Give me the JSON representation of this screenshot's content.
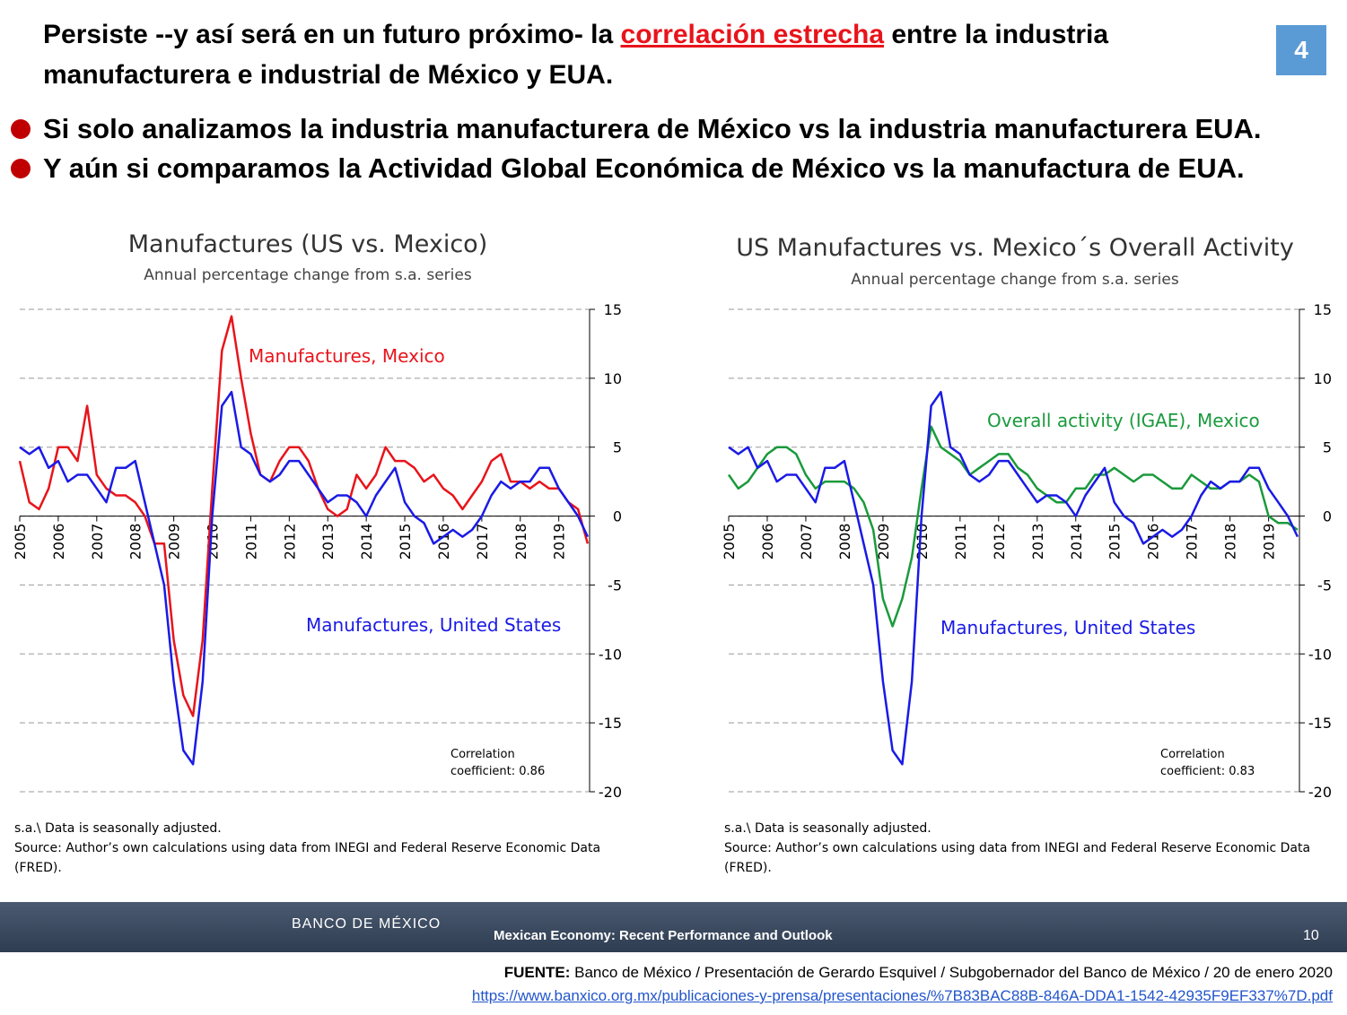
{
  "header": {
    "title_parts": [
      "Persiste --y así será en un futuro próximo- la ",
      "correlación estrecha",
      " entre la industria",
      "manufacturera e industrial de México y EUA."
    ],
    "page_number": "4"
  },
  "bullets": [
    "Si solo analizamos la industria manufacturera de México vs la industria manufacturera EUA.",
    "Y aún si comparamos la Actividad Global Económica de México vs la manufactura de EUA."
  ],
  "chart_data": [
    {
      "type": "line",
      "title": "Manufactures (US vs. Mexico)",
      "subtitle": "Annual percentage change from s.a. series",
      "x": [
        2005,
        2005.25,
        2005.5,
        2005.75,
        2006,
        2006.25,
        2006.5,
        2006.75,
        2007,
        2007.25,
        2007.5,
        2007.75,
        2008,
        2008.25,
        2008.5,
        2008.75,
        2009,
        2009.25,
        2009.5,
        2009.75,
        2010,
        2010.25,
        2010.5,
        2010.75,
        2011,
        2011.25,
        2011.5,
        2011.75,
        2012,
        2012.25,
        2012.5,
        2012.75,
        2013,
        2013.25,
        2013.5,
        2013.75,
        2014,
        2014.25,
        2014.5,
        2014.75,
        2015,
        2015.25,
        2015.5,
        2015.75,
        2016,
        2016.25,
        2016.5,
        2016.75,
        2017,
        2017.25,
        2017.5,
        2017.75,
        2018,
        2018.25,
        2018.5,
        2018.75,
        2019,
        2019.25,
        2019.5,
        2019.75
      ],
      "xlim": [
        2005,
        2019.8
      ],
      "xticks": [
        2005,
        2006,
        2007,
        2008,
        2009,
        2010,
        2011,
        2012,
        2013,
        2014,
        2015,
        2016,
        2017,
        2018,
        2019
      ],
      "ylim": [
        -20,
        15
      ],
      "yticks": [
        15,
        10,
        5,
        0,
        -5,
        -10,
        -15,
        -20
      ],
      "grid": true,
      "series": [
        {
          "name": "Manufactures, Mexico",
          "color": "#e8141b",
          "values": [
            4,
            1,
            0.5,
            2,
            5,
            5,
            4,
            8,
            3,
            2,
            1.5,
            1.5,
            1,
            0,
            -2,
            -2,
            -9,
            -13,
            -14.5,
            -9,
            2,
            12,
            14.5,
            10,
            6,
            3,
            2.5,
            4,
            5,
            5,
            4,
            2,
            0.5,
            0,
            0.5,
            3,
            2,
            3,
            5,
            4,
            4,
            3.5,
            2.5,
            3,
            2,
            1.5,
            0.5,
            1.5,
            2.5,
            4,
            4.5,
            2.5,
            2.5,
            2,
            2.5,
            2,
            2,
            1,
            0.5,
            -2
          ]
        },
        {
          "name": "Manufactures, United States",
          "color": "#1a1ae6",
          "values": [
            5,
            4.5,
            5,
            3.5,
            4,
            2.5,
            3,
            3,
            2,
            1,
            3.5,
            3.5,
            4,
            1,
            -2,
            -5,
            -12,
            -17,
            -18,
            -12,
            0,
            8,
            9,
            5,
            4.5,
            3,
            2.5,
            3,
            4,
            4,
            3,
            2,
            1,
            1.5,
            1.5,
            1,
            0,
            1.5,
            2.5,
            3.5,
            1,
            0,
            -0.5,
            -2,
            -1.5,
            -1,
            -1.5,
            -1,
            0,
            1.5,
            2.5,
            2,
            2.5,
            2.5,
            3.5,
            3.5,
            2,
            1,
            0,
            -1.5
          ]
        }
      ],
      "annotation": [
        "Correlation",
        "coefficient: 0.86"
      ],
      "notes": [
        "s.a.\\ Data is seasonally adjusted.",
        "Source: Author’s own calculations using data from INEGI and Federal Reserve Economic Data",
        "(FRED)."
      ]
    },
    {
      "type": "line",
      "title": "US Manufactures vs. Mexico´s Overall Activity",
      "subtitle": "Annual percentage change from s.a. series",
      "x": [
        2005,
        2005.25,
        2005.5,
        2005.75,
        2006,
        2006.25,
        2006.5,
        2006.75,
        2007,
        2007.25,
        2007.5,
        2007.75,
        2008,
        2008.25,
        2008.5,
        2008.75,
        2009,
        2009.25,
        2009.5,
        2009.75,
        2010,
        2010.25,
        2010.5,
        2010.75,
        2011,
        2011.25,
        2011.5,
        2011.75,
        2012,
        2012.25,
        2012.5,
        2012.75,
        2013,
        2013.25,
        2013.5,
        2013.75,
        2014,
        2014.25,
        2014.5,
        2014.75,
        2015,
        2015.25,
        2015.5,
        2015.75,
        2016,
        2016.25,
        2016.5,
        2016.75,
        2017,
        2017.25,
        2017.5,
        2017.75,
        2018,
        2018.25,
        2018.5,
        2018.75,
        2019,
        2019.25,
        2019.5,
        2019.75
      ],
      "xlim": [
        2005,
        2019.8
      ],
      "xticks": [
        2005,
        2006,
        2007,
        2008,
        2009,
        2010,
        2011,
        2012,
        2013,
        2014,
        2015,
        2016,
        2017,
        2018,
        2019
      ],
      "ylim": [
        -20,
        15
      ],
      "yticks": [
        15,
        10,
        5,
        0,
        -5,
        -10,
        -15,
        -20
      ],
      "grid": true,
      "series": [
        {
          "name": "Overall activity (IGAE), Mexico",
          "color": "#1a9a3c",
          "values": [
            3,
            2,
            2.5,
            3.5,
            4.5,
            5,
            5,
            4.5,
            3,
            2,
            2.5,
            2.5,
            2.5,
            2,
            1,
            -1,
            -6,
            -8,
            -6,
            -3,
            2,
            6.5,
            5,
            4.5,
            4,
            3,
            3.5,
            4,
            4.5,
            4.5,
            3.5,
            3,
            2,
            1.5,
            1,
            1,
            2,
            2,
            3,
            3,
            3.5,
            3,
            2.5,
            3,
            3,
            2.5,
            2,
            2,
            3,
            2.5,
            2,
            2,
            2.5,
            2.5,
            3,
            2.5,
            0,
            -0.5,
            -0.5,
            -1
          ]
        },
        {
          "name": "Manufactures, United States",
          "color": "#1a1ae6",
          "values": [
            5,
            4.5,
            5,
            3.5,
            4,
            2.5,
            3,
            3,
            2,
            1,
            3.5,
            3.5,
            4,
            1,
            -2,
            -5,
            -12,
            -17,
            -18,
            -12,
            0,
            8,
            9,
            5,
            4.5,
            3,
            2.5,
            3,
            4,
            4,
            3,
            2,
            1,
            1.5,
            1.5,
            1,
            0,
            1.5,
            2.5,
            3.5,
            1,
            0,
            -0.5,
            -2,
            -1.5,
            -1,
            -1.5,
            -1,
            0,
            1.5,
            2.5,
            2,
            2.5,
            2.5,
            3.5,
            3.5,
            2,
            1,
            0,
            -1.5
          ]
        }
      ],
      "annotation": [
        "Correlation",
        "coefficient: 0.83"
      ],
      "notes": [
        "s.a.\\ Data is seasonally adjusted.",
        "Source: Author’s own calculations using data from INEGI and Federal Reserve Economic Data",
        "(FRED)."
      ]
    }
  ],
  "footer": {
    "logo": "BANCO DE MÉXICO",
    "presentation": "Mexican Economy: Recent Performance and Outlook",
    "slide_number": "10"
  },
  "source": {
    "label": "FUENTE:",
    "text": " Banco de México / Presentación de Gerardo Esquivel / Subgobernador del Banco de México / 20 de enero 2020",
    "url": "https://www.banxico.org.mx/publicaciones-y-prensa/presentaciones/%7B83BAC88B-846A-DDA1-1542-42935F9EF337%7D.pdf"
  }
}
